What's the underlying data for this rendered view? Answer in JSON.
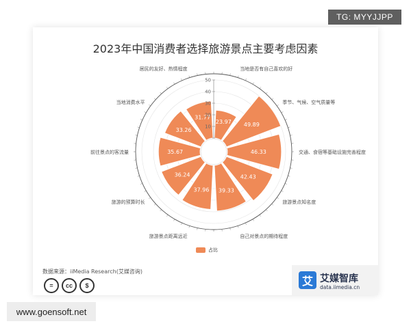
{
  "badge": "TG: MYYJJPP",
  "watermark": "www.goensoft.net",
  "source": "数据来源：iiMedia Research(艾媒咨询)",
  "cc_icons": [
    "=",
    "cc",
    "$"
  ],
  "brand": {
    "logo_char": "艾",
    "name": "艾媒智库",
    "url": "data.iimedia.cn"
  },
  "colors": {
    "bar": "#ef8a57",
    "bar_stroke": "#ffffff",
    "axis": "#999999",
    "grid": "#e3e3e3"
  },
  "chart_data": {
    "type": "bar",
    "layout": "polar",
    "title": "2023年中国消费者选择旅游景点主要考虑因素",
    "categories": [
      "当地是否有自己喜欢的好",
      "季节、气候、空气质量等",
      "交通、食宿等基础设施完善程度",
      "旅游景点知名度",
      "自己对景点的期待程度",
      "旅游景点距离远近",
      "旅游的预算时长",
      "前往景点的客流量",
      "当地消费水平",
      "居民的友好、热情程度"
    ],
    "series": [
      {
        "name": "占比",
        "values": [
          23.97,
          49.89,
          46.33,
          42.43,
          39.33,
          37.96,
          36.24,
          35.67,
          33.26,
          31.77
        ],
        "labels": [
          "23.97",
          "49.89",
          "46.33",
          "42.43",
          "39.33",
          "37.96",
          "36.24",
          "35.67",
          "33.26",
          "31.77"
        ]
      }
    ],
    "radial_axis": {
      "range": [
        0,
        50
      ],
      "ticks": [
        "0",
        "10",
        "20",
        "30",
        "40",
        "50"
      ]
    },
    "legend": {
      "position": "bottom",
      "label": "占比"
    }
  }
}
